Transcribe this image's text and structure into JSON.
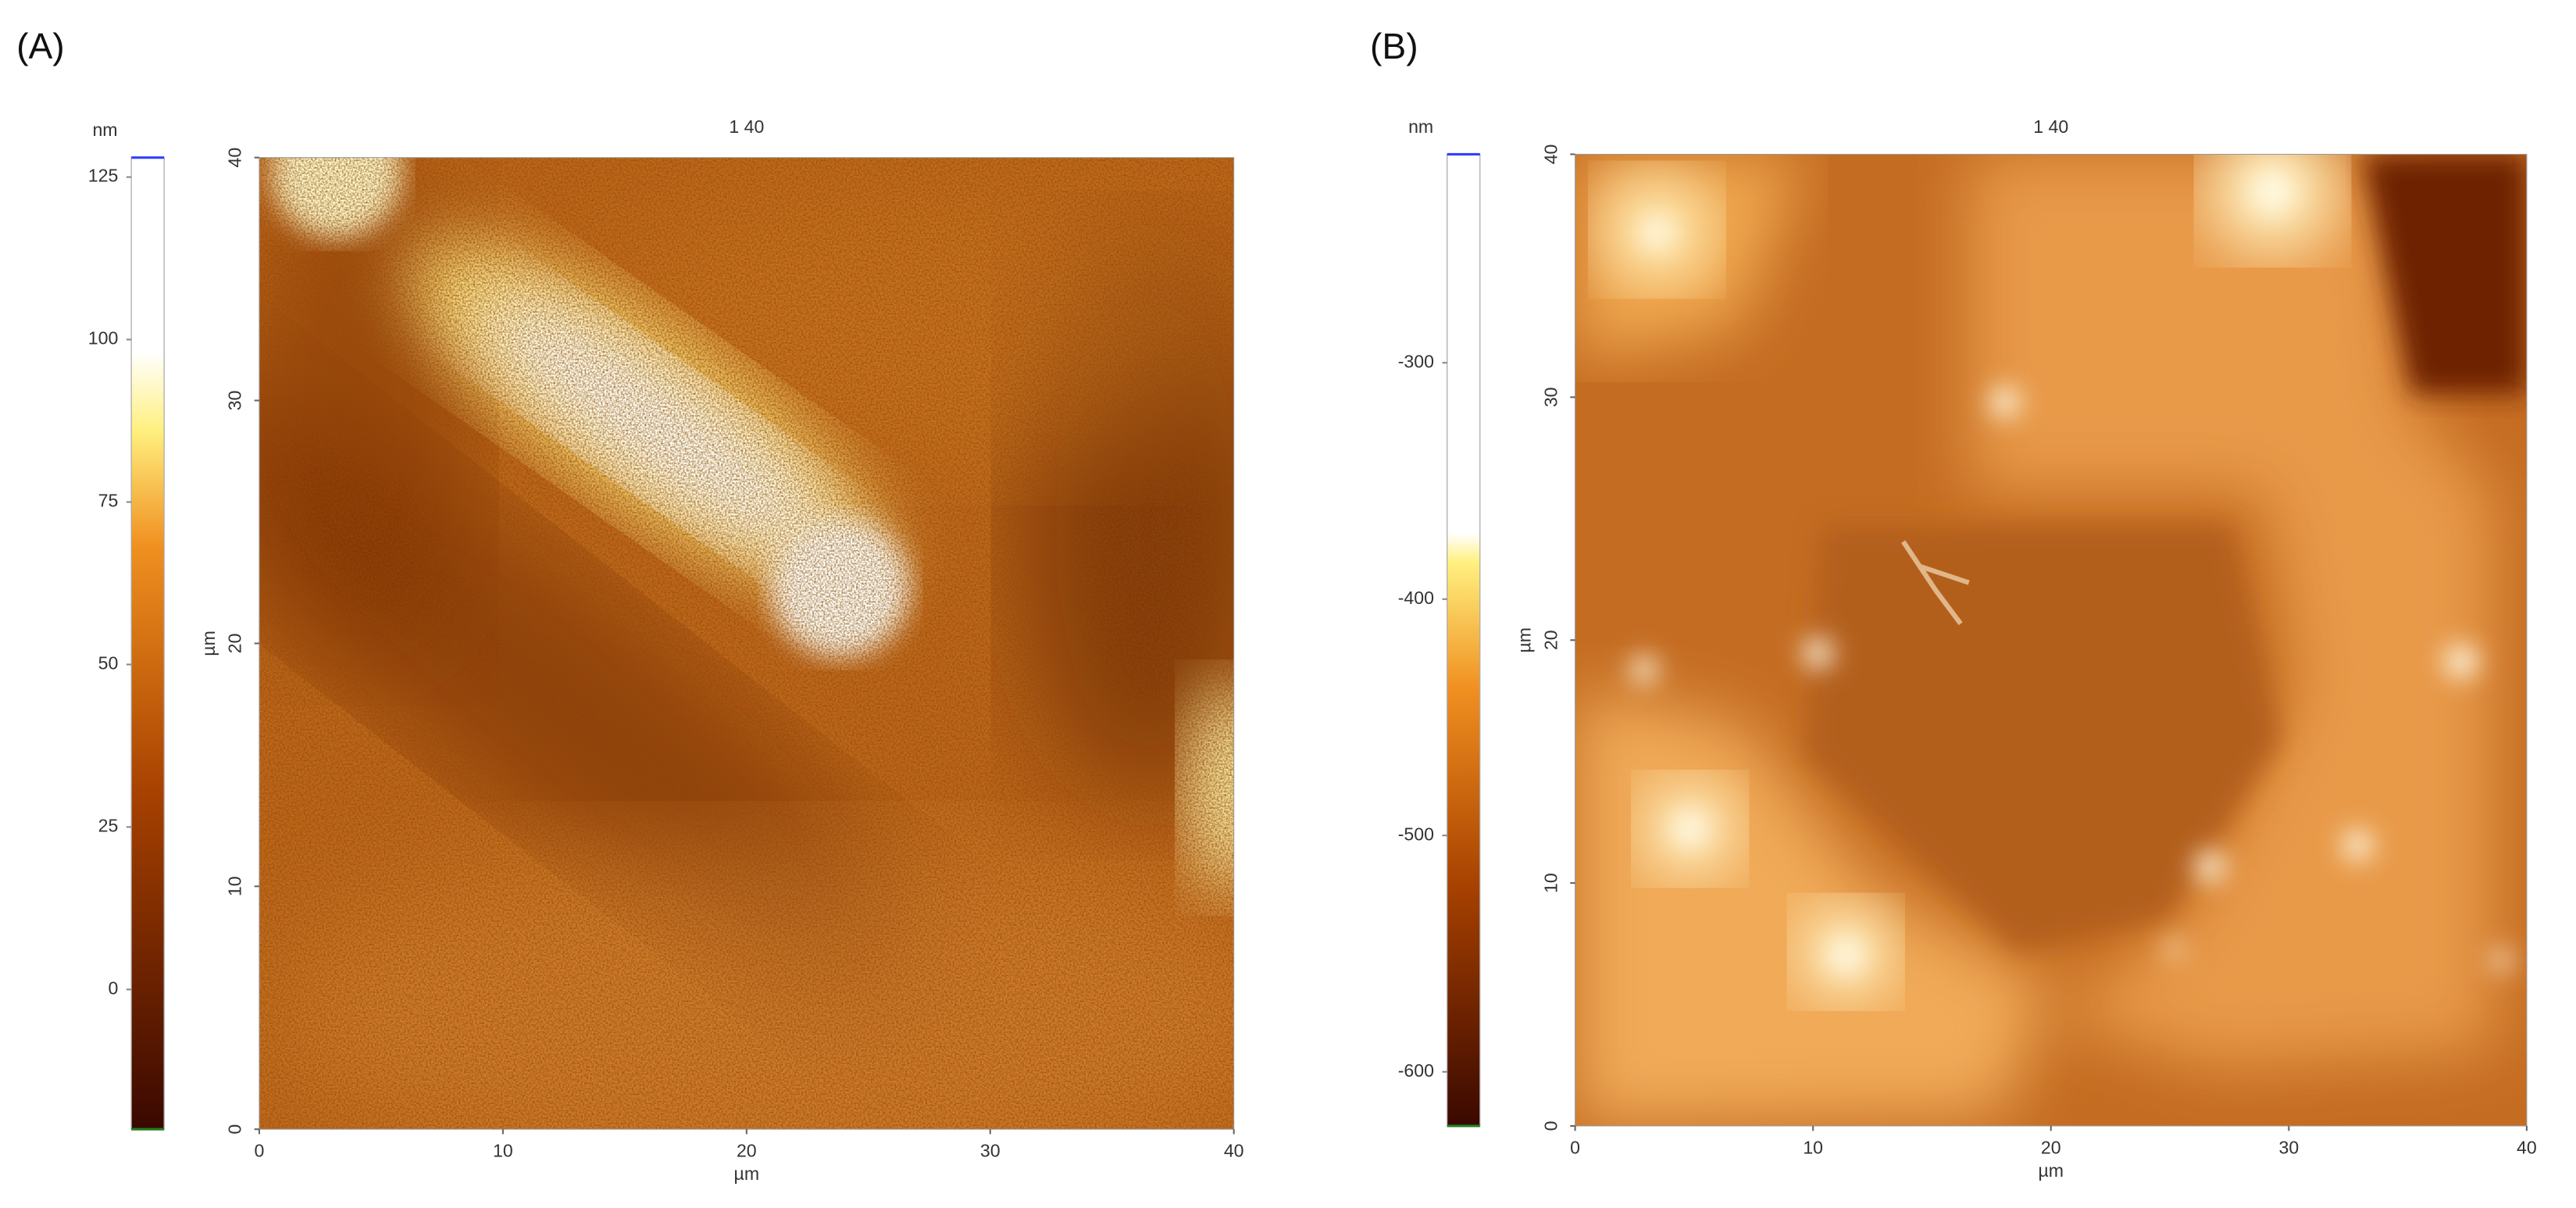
{
  "chart_data": [
    {
      "type": "heatmap",
      "panel": "(A)",
      "title": "1 40",
      "xlabel": "µm",
      "ylabel": "µm",
      "xlim": [
        0,
        40
      ],
      "ylim": [
        0,
        40
      ],
      "xticks": [
        0,
        10,
        20,
        30,
        40
      ],
      "yticks": [
        0,
        10,
        20,
        30,
        40
      ],
      "colorbar": {
        "label": "nm",
        "lim": [
          -21.5,
          128
        ],
        "ticks": [
          0,
          25,
          50,
          75,
          100,
          125
        ]
      }
    },
    {
      "type": "heatmap",
      "panel": "(B)",
      "title": "1 40",
      "xlabel": "µm",
      "ylabel": "µm",
      "xlim": [
        0,
        40
      ],
      "ylim": [
        0,
        40
      ],
      "xticks": [
        0,
        10,
        20,
        30,
        40
      ],
      "yticks": [
        0,
        10,
        20,
        30,
        40
      ],
      "colorbar": {
        "label": "nm",
        "lim": [
          -622.9,
          -211.8
        ],
        "ticks": [
          -600,
          -500,
          -400,
          -300
        ]
      }
    }
  ]
}
